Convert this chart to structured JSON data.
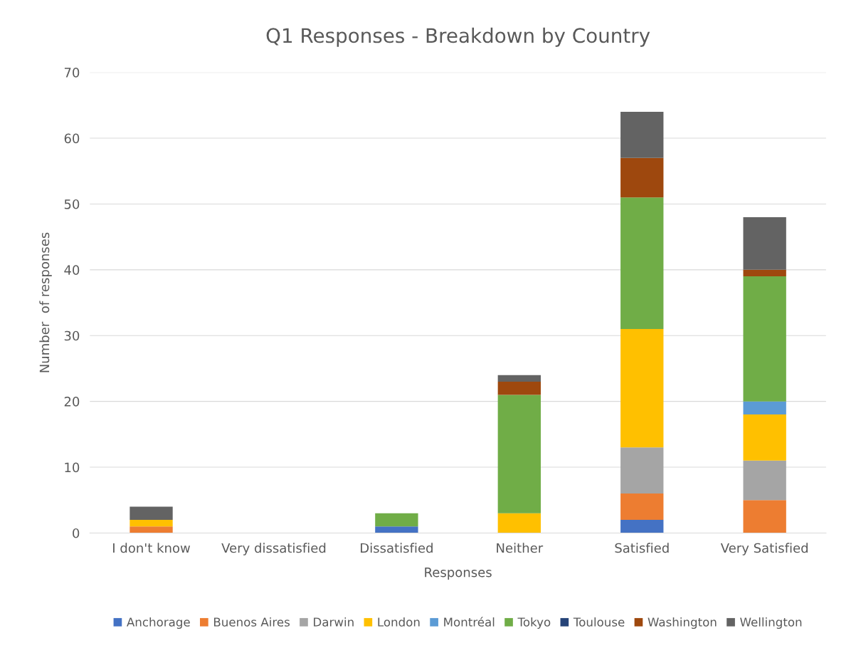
{
  "chart_data": {
    "type": "bar",
    "stacked": true,
    "title": "Q1 Responses - Breakdown by Country",
    "xlabel": "Responses",
    "ylabel": "Number  of responses",
    "categories": [
      "I don't know",
      "Very dissatisfied",
      "Dissatisfied",
      "Neither",
      "Satisfied",
      "Very Satisfied"
    ],
    "series": [
      {
        "name": "Anchorage",
        "color": "#4472c4",
        "values": [
          0,
          0,
          1,
          0,
          2,
          0
        ]
      },
      {
        "name": "Buenos Aires",
        "color": "#ed7d31",
        "values": [
          1,
          0,
          0,
          0,
          4,
          5
        ]
      },
      {
        "name": "Darwin",
        "color": "#a5a5a5",
        "values": [
          0,
          0,
          0,
          0,
          7,
          6
        ]
      },
      {
        "name": "London",
        "color": "#ffc000",
        "values": [
          1,
          0,
          0,
          3,
          18,
          7
        ]
      },
      {
        "name": "Montréal",
        "color": "#5b9bd5",
        "values": [
          0,
          0,
          0,
          0,
          0,
          2
        ]
      },
      {
        "name": "Tokyo",
        "color": "#70ad47",
        "values": [
          0,
          0,
          2,
          18,
          20,
          19
        ]
      },
      {
        "name": "Toulouse",
        "color": "#264478",
        "values": [
          0,
          0,
          0,
          0,
          0,
          0
        ]
      },
      {
        "name": "Washington",
        "color": "#9e480e",
        "values": [
          0,
          0,
          0,
          2,
          6,
          1
        ]
      },
      {
        "name": "Wellington",
        "color": "#636363",
        "values": [
          2,
          0,
          0,
          1,
          7,
          8
        ]
      }
    ],
    "ylim": [
      0,
      70
    ],
    "yticks": [
      0,
      10,
      20,
      30,
      40,
      50,
      60,
      70
    ],
    "grid": "y",
    "legend": "bottom"
  }
}
